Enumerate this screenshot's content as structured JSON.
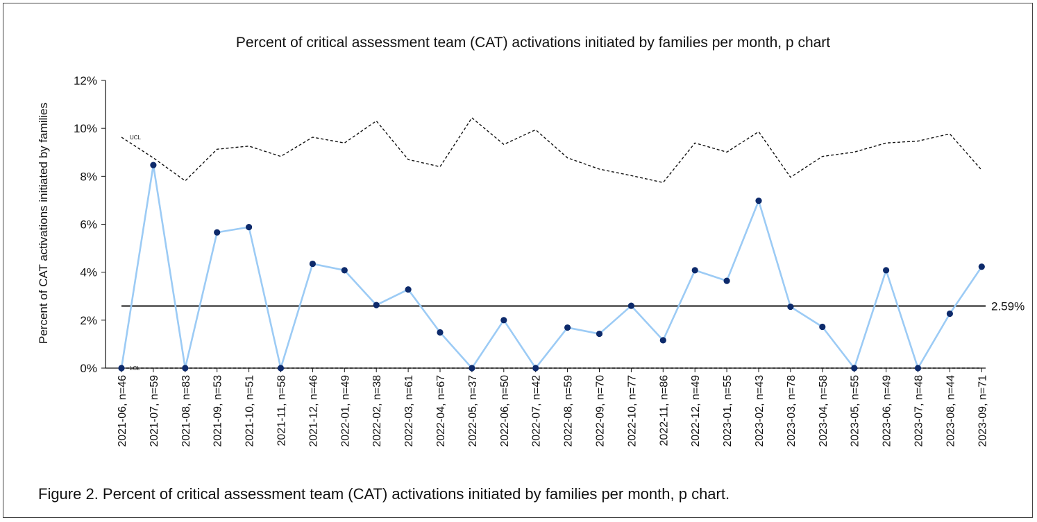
{
  "chart_data": {
    "type": "line",
    "title": "Percent of critical assessment team (CAT) activations initiated by families per month, p chart",
    "ylabel": "Percent of CAT activations initiated by families",
    "ylim": [
      0,
      12
    ],
    "yticks": [
      "0%",
      "2%",
      "4%",
      "6%",
      "8%",
      "10%",
      "12%"
    ],
    "categories": [
      "2021-06, n=46",
      "2021-07, n=59",
      "2021-08, n=83",
      "2021-09, n=53",
      "2021-10, n=51",
      "2021-11, n=58",
      "2021-12, n=46",
      "2022-01, n=49",
      "2022-02, n=38",
      "2022-03, n=61",
      "2022-04, n=67",
      "2022-05, n=37",
      "2022-06, n=50",
      "2022-07, n=42",
      "2022-08, n=59",
      "2022-09, n=70",
      "2022-10, n=77",
      "2022-11, n=86",
      "2022-12, n=49",
      "2023-01, n=55",
      "2023-02, n=43",
      "2023-03, n=78",
      "2023-04, n=58",
      "2023-05, n=55",
      "2023-06, n=49",
      "2023-07, n=48",
      "2023-08, n=44",
      "2023-09, n=71"
    ],
    "series": [
      {
        "values": [
          0,
          8.47,
          0,
          5.66,
          5.88,
          0,
          4.35,
          4.08,
          2.63,
          3.28,
          1.49,
          0,
          2.0,
          0,
          1.69,
          1.43,
          2.6,
          1.16,
          4.08,
          3.64,
          6.98,
          2.56,
          1.72,
          0,
          4.08,
          0,
          2.27,
          4.23
        ],
        "color": "#9ccbf5",
        "marker_color": "#0d2a6b"
      },
      {
        "name": "UCL",
        "values": [
          9.63,
          8.77,
          7.81,
          9.13,
          9.26,
          8.83,
          9.63,
          9.39,
          10.31,
          8.7,
          8.4,
          10.44,
          9.33,
          9.94,
          8.77,
          8.3,
          8.03,
          7.74,
          9.39,
          9.01,
          9.86,
          7.96,
          8.83,
          9.01,
          9.39,
          9.47,
          9.77,
          8.26
        ],
        "color": "#111111",
        "style": "dashed"
      },
      {
        "name": "LCL",
        "values": [
          0,
          0,
          0,
          0,
          0,
          0,
          0,
          0,
          0,
          0,
          0,
          0,
          0,
          0,
          0,
          0,
          0,
          0,
          0,
          0,
          0,
          0,
          0,
          0,
          0,
          0,
          0,
          0
        ],
        "color": "#111111",
        "style": "dashed"
      }
    ],
    "center_line": {
      "value": 2.59,
      "label": "2.59%",
      "color": "#000000"
    },
    "grid": false,
    "legend": "none"
  },
  "caption": "Figure 2. Percent of critical assessment team (CAT) activations initiated by families per month, p chart."
}
